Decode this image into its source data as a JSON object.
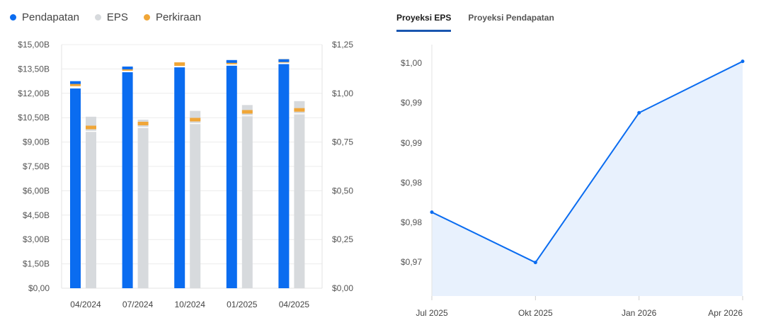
{
  "legend": [
    {
      "label": "Pendapatan",
      "color": "#0a6cf0"
    },
    {
      "label": "EPS",
      "color": "#d7dadd"
    },
    {
      "label": "Perkiraan",
      "color": "#f0a638"
    }
  ],
  "tabs": [
    {
      "label": "Proyeksi EPS",
      "active": true
    },
    {
      "label": "Proyeksi Pendapatan",
      "active": false
    }
  ],
  "chart_data": [
    {
      "type": "bar",
      "categories": [
        "04/2024",
        "07/2024",
        "10/2024",
        "01/2025",
        "04/2025"
      ],
      "y_left": {
        "ticks": [
          "$0,00",
          "$1,50B",
          "$3,00B",
          "$4,50B",
          "$6,00B",
          "$7,50B",
          "$9,00B",
          "$10,50B",
          "$12,00B",
          "$13,50B",
          "$15,00B"
        ],
        "range": [
          0,
          15
        ]
      },
      "y_right": {
        "ticks": [
          "$0,00",
          "$0,25",
          "$0,50",
          "$0,75",
          "$1,00",
          "$1,25"
        ],
        "range": [
          0,
          1.25
        ]
      },
      "series": [
        {
          "name": "Pendapatan",
          "axis": "left",
          "values": [
            12.3,
            13.3,
            13.6,
            13.7,
            13.8
          ],
          "estimates": [
            12.55,
            13.5,
            13.8,
            13.9,
            14.0
          ],
          "top_values": [
            12.75,
            13.65,
            null,
            14.05,
            14.1
          ]
        },
        {
          "name": "EPS",
          "axis": "right",
          "values": [
            0.805,
            0.825,
            0.845,
            0.885,
            0.895
          ],
          "estimates": [
            0.825,
            0.845,
            0.865,
            0.905,
            0.915
          ],
          "top_values": [
            0.88,
            0.865,
            0.91,
            0.94,
            0.96
          ]
        }
      ],
      "grid": true,
      "legend_position": "top-left"
    },
    {
      "type": "area",
      "x": [
        "Jul 2025",
        "Okt 2025",
        "Jan 2026",
        "Apr 2026"
      ],
      "values": [
        0.973,
        0.964,
        0.9908,
        1.0
      ],
      "y_ticks": [
        "$0,97",
        "$0,98",
        "$0,98",
        "$0,99",
        "$0,99",
        "$1,00"
      ],
      "y_range": [
        0.958,
        1.003
      ],
      "grid": false
    }
  ]
}
